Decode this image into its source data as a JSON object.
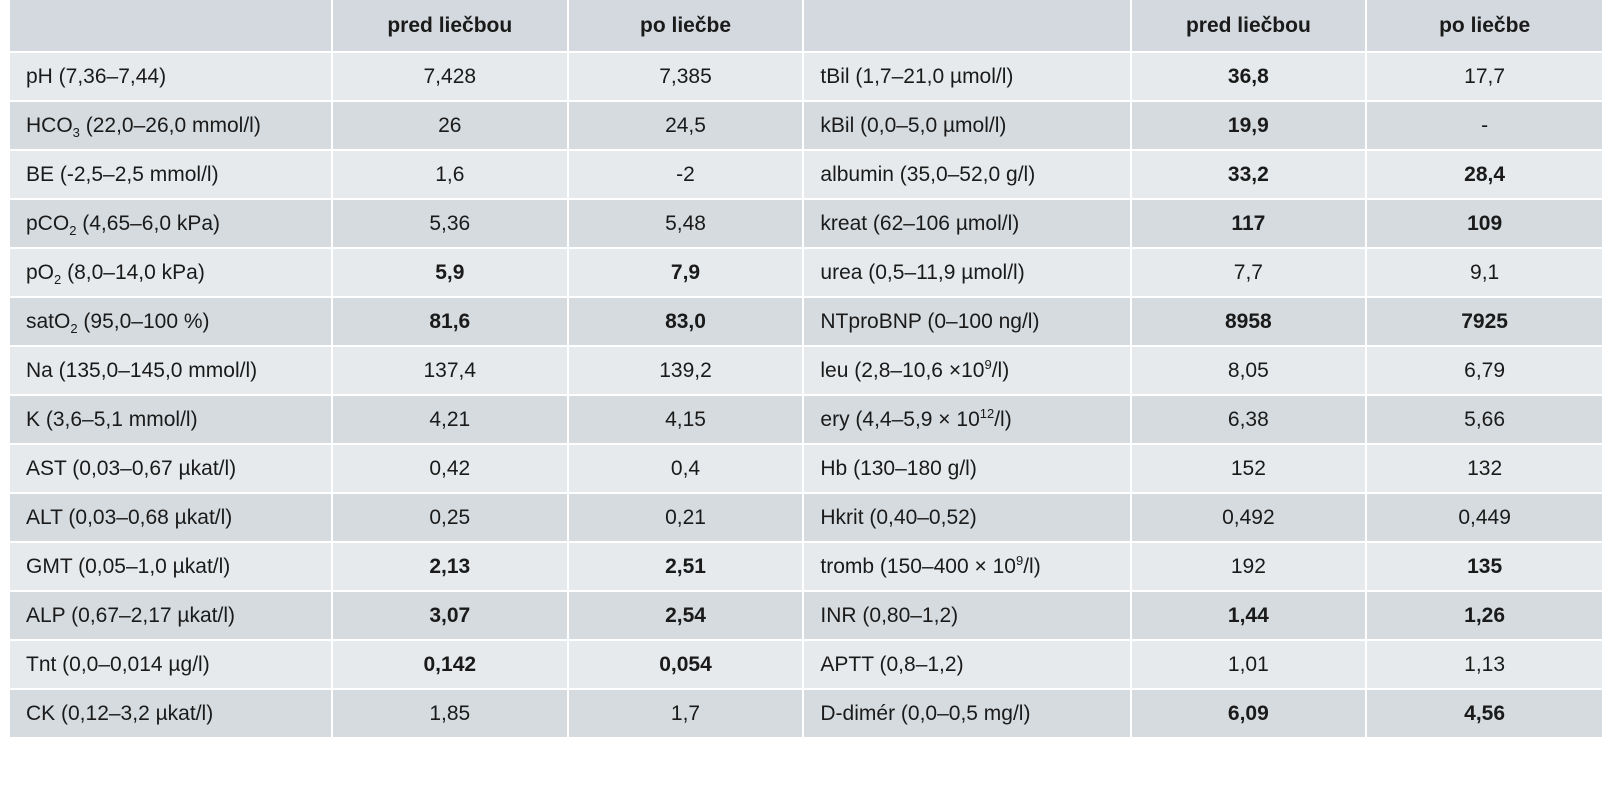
{
  "headers": [
    "",
    "pred liečbou",
    "po liečbe",
    "",
    "pred liečbou",
    "po liečbe"
  ],
  "rows": [
    {
      "l1": "pH (7,36–7,44)",
      "a": "7,428",
      "ab": false,
      "b": "7,385",
      "bb": false,
      "l2": "tBil (1,7–21,0 µmol/l)",
      "c": "36,8",
      "cb": true,
      "d": "17,7",
      "db": false
    },
    {
      "l1": "HCO<sub>3</sub> (22,0–26,0 mmol/l)",
      "a": "26",
      "ab": false,
      "b": "24,5",
      "bb": false,
      "l2": "kBil (0,0–5,0 µmol/l)",
      "c": "19,9",
      "cb": true,
      "d": "-",
      "db": false
    },
    {
      "l1": "BE (-2,5–2,5 mmol/l)",
      "a": "1,6",
      "ab": false,
      "b": "-2",
      "bb": false,
      "l2": "albumin (35,0–52,0 g/l)",
      "c": "33,2",
      "cb": true,
      "d": "28,4",
      "db": true
    },
    {
      "l1": "pCO<sub>2</sub> (4,65–6,0 kPa)",
      "a": "5,36",
      "ab": false,
      "b": "5,48",
      "bb": false,
      "l2": "kreat (62–106 µmol/l)",
      "c": "117",
      "cb": true,
      "d": "109",
      "db": true
    },
    {
      "l1": "pO<sub>2</sub> (8,0–14,0 kPa)",
      "a": "5,9",
      "ab": true,
      "b": "7,9",
      "bb": true,
      "l2": "urea (0,5–11,9 µmol/l)",
      "c": "7,7",
      "cb": false,
      "d": "9,1",
      "db": false
    },
    {
      "l1": "satO<sub>2</sub> (95,0–100 %)",
      "a": "81,6",
      "ab": true,
      "b": "83,0",
      "bb": true,
      "l2": "NTproBNP (0–100 ng/l)",
      "c": "8958",
      "cb": true,
      "d": "7925",
      "db": true
    },
    {
      "l1": "Na (135,0–145,0 mmol/l)",
      "a": "137,4",
      "ab": false,
      "b": "139,2",
      "bb": false,
      "l2": "leu (2,8–10,6 ×10<sup>9</sup>/l)",
      "c": "8,05",
      "cb": false,
      "d": "6,79",
      "db": false
    },
    {
      "l1": "K (3,6–5,1 mmol/l)",
      "a": "4,21",
      "ab": false,
      "b": "4,15",
      "bb": false,
      "l2": "ery (4,4–5,9 × 10<sup>12</sup>/l)",
      "c": "6,38",
      "cb": false,
      "d": "5,66",
      "db": false
    },
    {
      "l1": "AST (0,03–0,67 µkat/l)",
      "a": "0,42",
      "ab": false,
      "b": "0,4",
      "bb": false,
      "l2": "Hb (130–180 g/l)",
      "c": "152",
      "cb": false,
      "d": "132",
      "db": false
    },
    {
      "l1": "ALT (0,03–0,68 µkat/l)",
      "a": "0,25",
      "ab": false,
      "b": "0,21",
      "bb": false,
      "l2": "Hkrit (0,40–0,52)",
      "c": "0,492",
      "cb": false,
      "d": "0,449",
      "db": false
    },
    {
      "l1": "GMT (0,05–1,0 µkat/l)",
      "a": "2,13",
      "ab": true,
      "b": "2,51",
      "bb": true,
      "l2": "tromb (150–400 × 10<sup>9</sup>/l)",
      "c": "192",
      "cb": false,
      "d": "135",
      "db": true
    },
    {
      "l1": "ALP (0,67–2,17 µkat/l)",
      "a": "3,07",
      "ab": true,
      "b": "2,54",
      "bb": true,
      "l2": "INR (0,80–1,2)",
      "c": "1,44",
      "cb": true,
      "d": "1,26",
      "db": true
    },
    {
      "l1": "Tnt (0,0–0,014 µg/l)",
      "a": "0,142",
      "ab": true,
      "b": "0,054",
      "bb": true,
      "l2": "APTT (0,8–1,2)",
      "c": "1,01",
      "cb": false,
      "d": "1,13",
      "db": false
    },
    {
      "l1": "CK (0,12–3,2 µkat/l)",
      "a": "1,85",
      "ab": false,
      "b": "1,7",
      "bb": false,
      "l2": "D-dimér (0,0–0,5 mg/l)",
      "c": "6,09",
      "cb": true,
      "d": "4,56",
      "db": true
    }
  ]
}
